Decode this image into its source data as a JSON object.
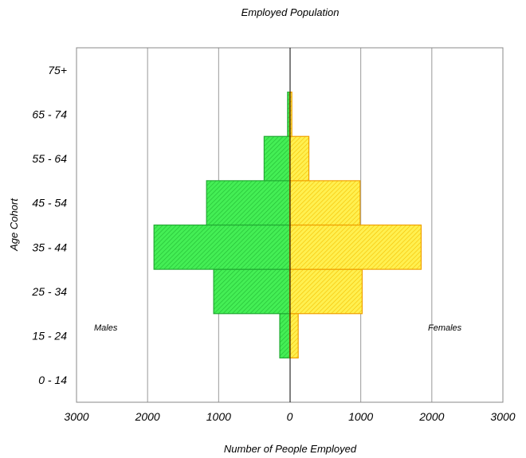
{
  "chart_data": {
    "type": "bar",
    "orientation": "horizontal",
    "title": "Employed Population",
    "xlabel": "Number of People Employed",
    "ylabel": "Age Cohort",
    "categories": [
      "0 - 14",
      "15 - 24",
      "25 - 34",
      "35 - 44",
      "45 - 54",
      "55 - 64",
      "65 - 74",
      "75+"
    ],
    "x_tick_labels": [
      "3000",
      "2000",
      "1000",
      "0",
      "1000",
      "2000",
      "3000"
    ],
    "xlim": [
      -3000,
      3000
    ],
    "grid": true,
    "series": [
      {
        "name": "Males",
        "color": "#33dd44",
        "stroke": "#22aa33",
        "values": [
          0,
          140,
          1070,
          1910,
          1170,
          360,
          30,
          0
        ]
      },
      {
        "name": "Females",
        "color": "#ffe040",
        "stroke": "#f0a000",
        "values": [
          0,
          120,
          1020,
          1850,
          990,
          270,
          30,
          0
        ]
      }
    ],
    "annotations": [
      "Males",
      "Females"
    ]
  }
}
